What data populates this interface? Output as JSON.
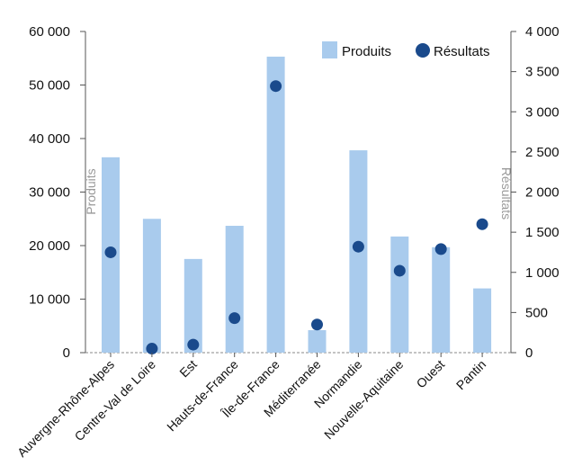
{
  "chart_data": {
    "type": "bar",
    "categories": [
      "Auvergne-Rhône-Alpes",
      "Centre-Val de Loire",
      "Est",
      "Hauts-de-France",
      "Île-de-France",
      "Méditerranée",
      "Normandie",
      "Nouvelle-Aquitaine",
      "Ouest",
      "Pantin"
    ],
    "series": [
      {
        "name": "Produits",
        "type": "bar",
        "axis": "left",
        "color": "#a9cbed",
        "values": [
          36500,
          25000,
          17500,
          23700,
          55300,
          4200,
          37800,
          21700,
          19700,
          12000
        ]
      },
      {
        "name": "Résultats",
        "type": "scatter",
        "axis": "right",
        "color": "#1a4a8c",
        "values": [
          1250,
          50,
          100,
          430,
          3320,
          350,
          1320,
          1020,
          1290,
          1600
        ]
      }
    ],
    "ylabel": "Produits",
    "y2label": "Résultats",
    "ylim": [
      0,
      60000
    ],
    "y2lim": [
      0,
      4000
    ],
    "yticks": [
      "0",
      "10 000",
      "20 000",
      "30 000",
      "40 000",
      "50 000",
      "60 000"
    ],
    "y2ticks": [
      "0",
      "500",
      "1 000",
      "1 500",
      "2 000",
      "2 500",
      "3 000",
      "3 500",
      "4 000"
    ],
    "legend_position": "top-right",
    "grid": false
  }
}
